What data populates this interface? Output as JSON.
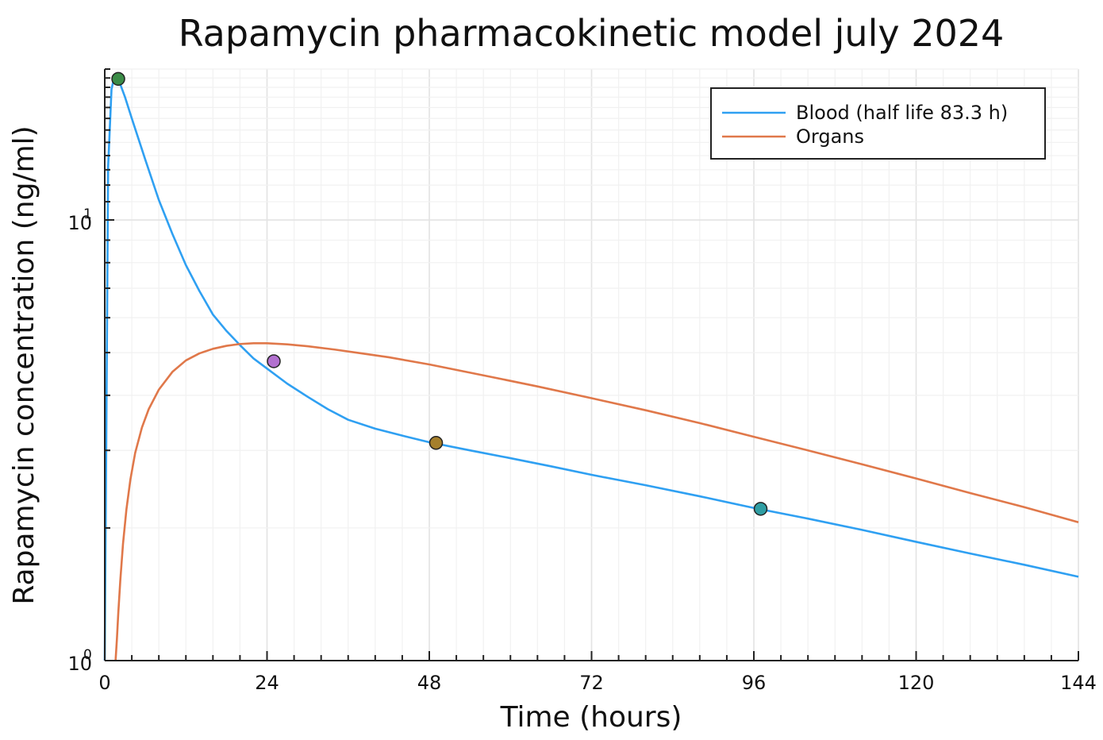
{
  "chart_data": {
    "type": "line",
    "title": "Rapamycin pharmacokinetic model july 2024",
    "xlabel": "Time (hours)",
    "ylabel": "Rapamycin concentration (ng/ml)",
    "x_ticks": [
      0,
      24,
      48,
      72,
      96,
      120,
      144
    ],
    "xlim": [
      0,
      144
    ],
    "ylim": [
      1,
      22
    ],
    "yscale": "log",
    "y_ticks": [
      {
        "value": 1,
        "base": "10",
        "exp": "0"
      },
      {
        "value": 10,
        "base": "10",
        "exp": "1"
      }
    ],
    "grid": true,
    "legend_position": "top-right",
    "series": [
      {
        "name": "Blood (half life 83.3 h)",
        "color": "#2fa0f2",
        "x": [
          0,
          0.5,
          1,
          1.5,
          2,
          3,
          4,
          6,
          8,
          10,
          12,
          14,
          16,
          18,
          20,
          22,
          24,
          27,
          30,
          33,
          36,
          40,
          44,
          48,
          54,
          60,
          66,
          72,
          80,
          88,
          96,
          104,
          112,
          120,
          128,
          136,
          144
        ],
        "y": [
          0,
          13.2,
          19.8,
          21.4,
          20.9,
          19.0,
          17.0,
          13.7,
          11.1,
          9.3,
          7.9,
          6.9,
          6.1,
          5.6,
          5.2,
          4.85,
          4.6,
          4.25,
          3.97,
          3.72,
          3.52,
          3.36,
          3.24,
          3.13,
          3.0,
          2.88,
          2.76,
          2.64,
          2.5,
          2.36,
          2.22,
          2.1,
          1.98,
          1.86,
          1.75,
          1.65,
          1.55
        ]
      },
      {
        "name": "Organs",
        "color": "#e0784a",
        "x": [
          1.6,
          1.8,
          2.0,
          2.3,
          2.7,
          3.2,
          3.8,
          4.5,
          5.5,
          6.5,
          8,
          10,
          12,
          14,
          16,
          18,
          20,
          22,
          24,
          27,
          30,
          34,
          38,
          42,
          48,
          56,
          64,
          72,
          80,
          88,
          96,
          104,
          112,
          120,
          128,
          136,
          144
        ],
        "y": [
          1.0,
          1.12,
          1.28,
          1.52,
          1.84,
          2.2,
          2.58,
          2.96,
          3.38,
          3.72,
          4.12,
          4.52,
          4.8,
          4.98,
          5.1,
          5.18,
          5.23,
          5.25,
          5.25,
          5.22,
          5.17,
          5.08,
          4.98,
          4.88,
          4.7,
          4.44,
          4.19,
          3.94,
          3.7,
          3.46,
          3.22,
          3.0,
          2.79,
          2.59,
          2.4,
          2.23,
          2.06
        ]
      }
    ],
    "markers": [
      {
        "x": 2,
        "y": 20.9,
        "color": "#3b8c47"
      },
      {
        "x": 25,
        "y": 4.78,
        "color": "#b270cf"
      },
      {
        "x": 49,
        "y": 3.12,
        "color": "#a57f2c"
      },
      {
        "x": 97,
        "y": 2.21,
        "color": "#2f9ea3"
      }
    ]
  }
}
